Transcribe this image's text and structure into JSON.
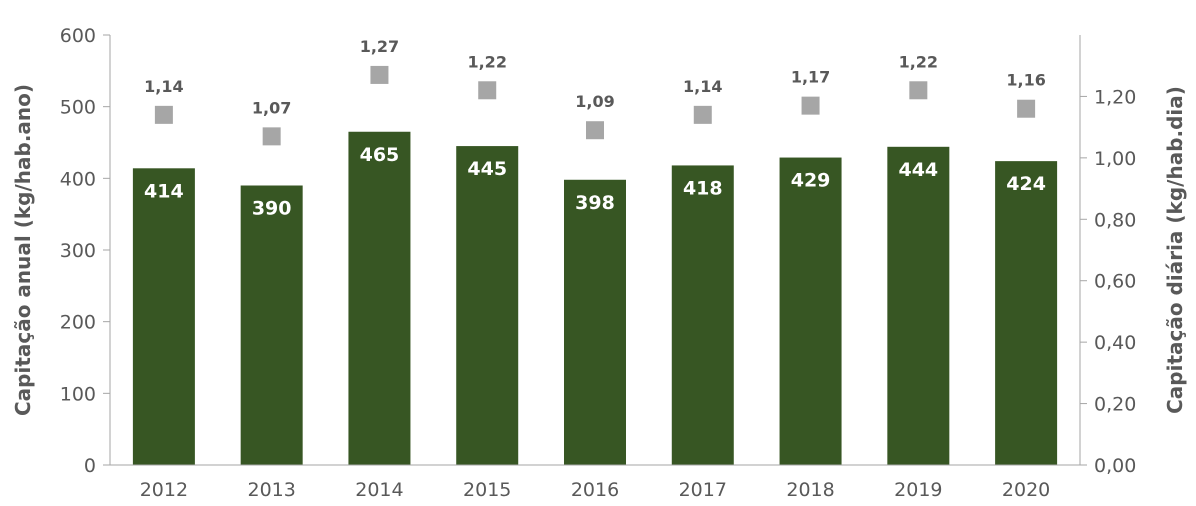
{
  "chart_data": {
    "type": "bar",
    "categories": [
      "2012",
      "2013",
      "2014",
      "2015",
      "2016",
      "2017",
      "2018",
      "2019",
      "2020"
    ],
    "series": [
      {
        "type": "bar",
        "axis": "left",
        "color": "#375623",
        "values": [
          414,
          390,
          465,
          445,
          398,
          418,
          429,
          444,
          424
        ],
        "labels": [
          "414",
          "390",
          "465",
          "445",
          "398",
          "418",
          "429",
          "444",
          "424"
        ]
      },
      {
        "type": "scatter",
        "axis": "right",
        "marker": "square",
        "color": "#a6a6a6",
        "values": [
          1.14,
          1.07,
          1.27,
          1.22,
          1.09,
          1.14,
          1.17,
          1.22,
          1.16
        ],
        "labels": [
          "1,14",
          "1,07",
          "1,27",
          "1,22",
          "1,09",
          "1,14",
          "1,17",
          "1,22",
          "1,16"
        ]
      }
    ],
    "title": "",
    "xlabel": "",
    "ylabel": "Capitação anual (kg/hab.ano)",
    "ylim": [
      0,
      600
    ],
    "yticks": [
      "0",
      "100",
      "200",
      "300",
      "400",
      "500",
      "600"
    ],
    "y2label": "Capitação diária (kg/hab.dia)",
    "y2lim": [
      0,
      1.4
    ],
    "y2ticks": [
      "0,00",
      "0,20",
      "0,40",
      "0,60",
      "0,80",
      "1,00",
      "1,20"
    ],
    "grid": false,
    "legend": "none",
    "axis_color": "#a6a6a6",
    "text_color": "#595959"
  }
}
